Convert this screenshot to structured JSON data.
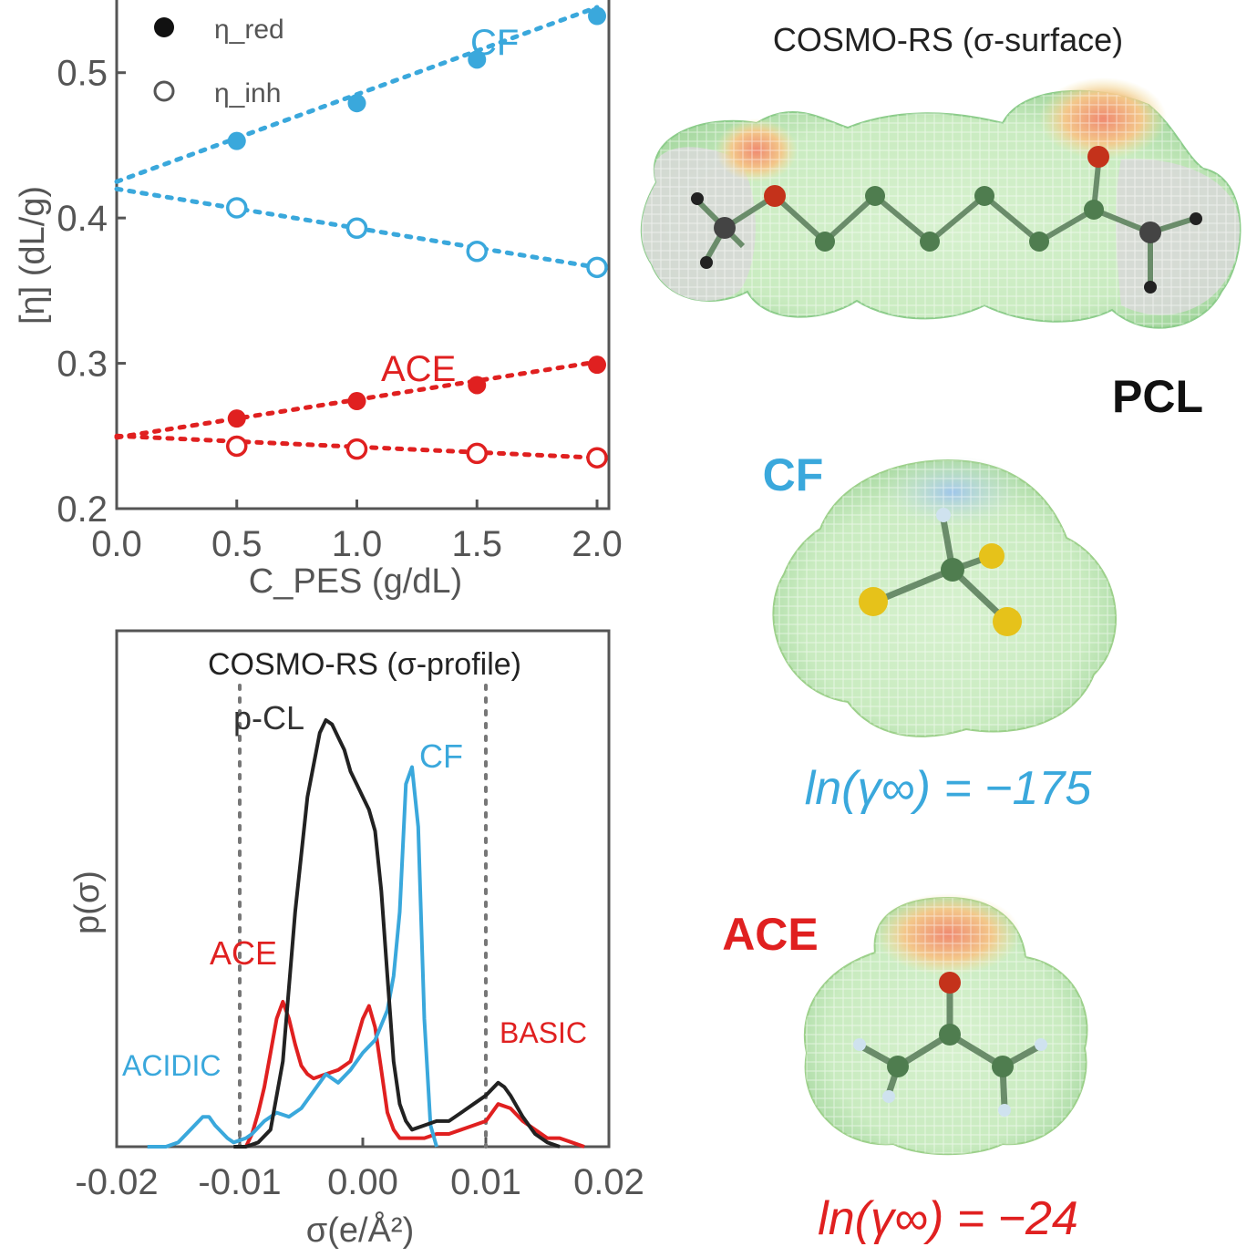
{
  "colors": {
    "cf": "#3aa8dc",
    "ace": "#e02020",
    "black": "#222222",
    "axis": "#555555"
  },
  "chart_data": [
    {
      "type": "scatter",
      "xlabel": "C_PES (g/dL)",
      "ylabel": "[η] (dL/g)",
      "xlim": [
        0.0,
        2.0
      ],
      "ylim": [
        0.2,
        0.55
      ],
      "xticks": [
        "0.0",
        "0.5",
        "1.0",
        "1.5",
        "2.0"
      ],
      "yticks": [
        "0.2",
        "0.3",
        "0.4",
        "0.5"
      ],
      "legend": [
        {
          "symbol": "filled-circle",
          "label": "η_red"
        },
        {
          "symbol": "open-circle",
          "label": "η_inh"
        }
      ],
      "legend_position": "top-left",
      "series_labels": {
        "cf": "CF",
        "ace": "ACE"
      },
      "series": [
        {
          "group": "CF",
          "marker": "filled",
          "x": [
            0.5,
            1.0,
            1.5,
            2.0
          ],
          "y": [
            0.453,
            0.479,
            0.509,
            0.539
          ],
          "fit": [
            [
              0.0,
              0.425
            ],
            [
              2.0,
              0.545
            ]
          ]
        },
        {
          "group": "CF",
          "marker": "open",
          "x": [
            0.5,
            1.0,
            1.5,
            2.0
          ],
          "y": [
            0.407,
            0.393,
            0.377,
            0.366
          ],
          "fit": [
            [
              0.0,
              0.42
            ],
            [
              2.0,
              0.366
            ]
          ]
        },
        {
          "group": "ACE",
          "marker": "filled",
          "x": [
            0.5,
            1.0,
            1.5,
            2.0
          ],
          "y": [
            0.262,
            0.274,
            0.285,
            0.299
          ],
          "fit": [
            [
              0.0,
              0.249
            ],
            [
              2.0,
              0.301
            ]
          ]
        },
        {
          "group": "ACE",
          "marker": "open",
          "x": [
            0.5,
            1.0,
            1.5,
            2.0
          ],
          "y": [
            0.243,
            0.241,
            0.238,
            0.235
          ],
          "fit": [
            [
              0.0,
              0.25
            ],
            [
              2.0,
              0.235
            ]
          ]
        }
      ]
    },
    {
      "type": "line",
      "title": "COSMO-RS (σ-profile)",
      "xlabel": "σ(e/Å²)",
      "ylabel": "p(σ)",
      "xlim": [
        -0.02,
        0.02
      ],
      "xticks": [
        "-0.02",
        "-0.01",
        "0.00",
        "0.01",
        "0.02"
      ],
      "vlines": [
        -0.01,
        0.01
      ],
      "annotations": [
        "ACIDIC",
        "BASIC"
      ],
      "series": [
        {
          "name": "p-CL",
          "color": "#222222",
          "x": [
            -0.0105,
            -0.0095,
            -0.0085,
            -0.0075,
            -0.0065,
            -0.0055,
            -0.0045,
            -0.0035,
            -0.003,
            -0.0025,
            -0.002,
            -0.0015,
            -0.001,
            -0.0005,
            0.0,
            0.0005,
            0.001,
            0.0015,
            0.002,
            0.0025,
            0.003,
            0.0035,
            0.004,
            0.005,
            0.006,
            0.007,
            0.008,
            0.009,
            0.01,
            0.011,
            0.0115,
            0.012,
            0.013,
            0.014,
            0.015,
            0.016
          ],
          "y": [
            0.0,
            0.0,
            0.01,
            0.04,
            0.2,
            0.55,
            0.82,
            0.97,
            1.0,
            0.99,
            0.96,
            0.93,
            0.88,
            0.85,
            0.82,
            0.79,
            0.74,
            0.6,
            0.4,
            0.2,
            0.1,
            0.06,
            0.04,
            0.05,
            0.06,
            0.06,
            0.08,
            0.1,
            0.12,
            0.15,
            0.14,
            0.12,
            0.07,
            0.03,
            0.01,
            0.0
          ]
        },
        {
          "name": "CF",
          "color": "#3aa8dc",
          "x": [
            -0.0175,
            -0.016,
            -0.015,
            -0.014,
            -0.013,
            -0.0125,
            -0.012,
            -0.011,
            -0.0105,
            -0.0095,
            -0.009,
            -0.008,
            -0.007,
            -0.006,
            -0.005,
            -0.004,
            -0.003,
            -0.002,
            -0.001,
            0.0,
            0.001,
            0.002,
            0.0025,
            0.003,
            0.0035,
            0.004,
            0.0045,
            0.005,
            0.0055,
            0.006
          ],
          "y": [
            0.0,
            0.0,
            0.01,
            0.04,
            0.07,
            0.07,
            0.05,
            0.02,
            0.01,
            0.02,
            0.03,
            0.06,
            0.08,
            0.07,
            0.09,
            0.13,
            0.17,
            0.15,
            0.18,
            0.22,
            0.25,
            0.32,
            0.4,
            0.55,
            0.85,
            0.89,
            0.75,
            0.3,
            0.05,
            0.0
          ]
        },
        {
          "name": "ACE",
          "color": "#e02020",
          "x": [
            -0.0095,
            -0.009,
            -0.0085,
            -0.008,
            -0.0075,
            -0.007,
            -0.0065,
            -0.006,
            -0.0055,
            -0.005,
            -0.0045,
            -0.004,
            -0.003,
            -0.002,
            -0.001,
            0.0,
            0.0005,
            0.001,
            0.0015,
            0.002,
            0.0025,
            0.003,
            0.004,
            0.005,
            0.006,
            0.007,
            0.008,
            0.009,
            0.01,
            0.011,
            0.012,
            0.013,
            0.014,
            0.015,
            0.016,
            0.017,
            0.018
          ],
          "y": [
            0.0,
            0.03,
            0.08,
            0.14,
            0.22,
            0.3,
            0.34,
            0.3,
            0.24,
            0.19,
            0.17,
            0.16,
            0.17,
            0.18,
            0.2,
            0.3,
            0.33,
            0.28,
            0.18,
            0.08,
            0.04,
            0.02,
            0.02,
            0.02,
            0.03,
            0.03,
            0.04,
            0.05,
            0.06,
            0.1,
            0.09,
            0.06,
            0.04,
            0.02,
            0.02,
            0.01,
            0.0
          ]
        }
      ]
    }
  ],
  "right_panel": {
    "surface_title": "COSMO-RS (σ-surface)",
    "pcl_label": "PCL",
    "cf_label": "CF",
    "cf_ln": "ln(γ∞) = −175",
    "ace_label": "ACE",
    "ace_ln": "ln(γ∞) = −24"
  }
}
